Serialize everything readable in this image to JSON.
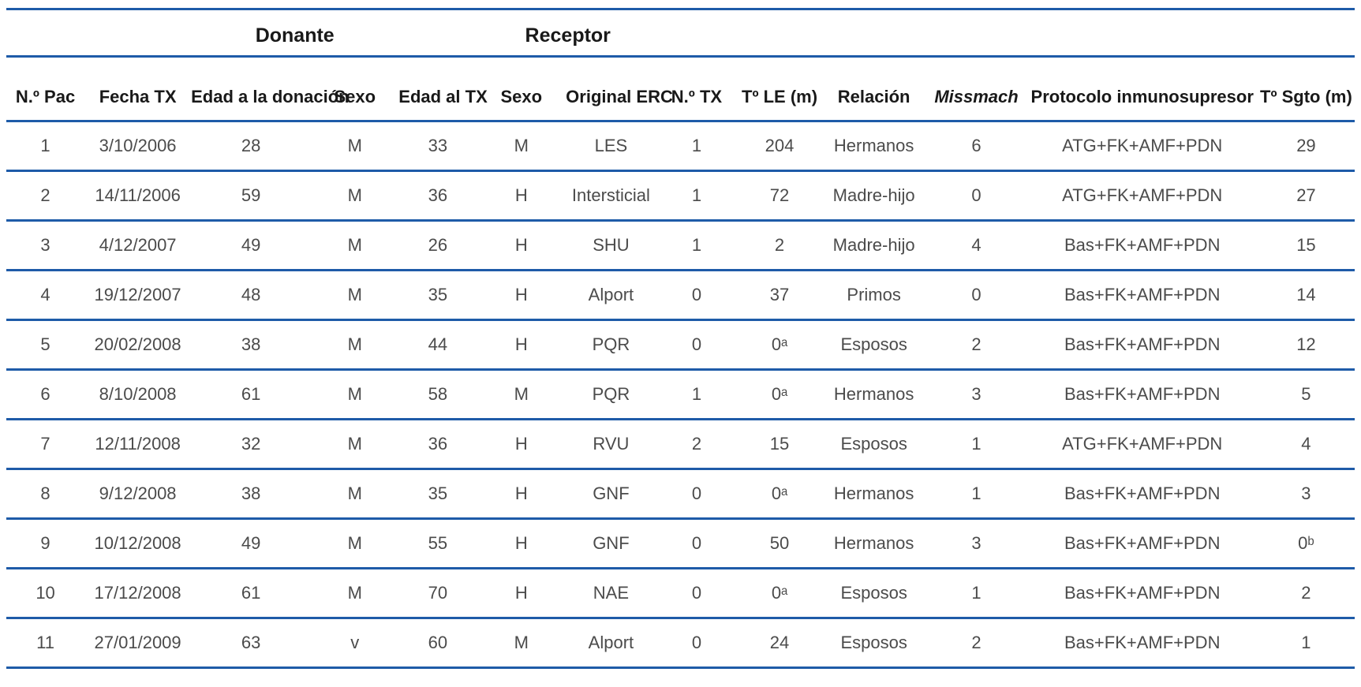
{
  "groups": {
    "donante": "Donante",
    "receptor": "Receptor"
  },
  "columns": [
    {
      "key": "pac",
      "label": "N.º Pac"
    },
    {
      "key": "fecha-tx",
      "label": "Fecha TX"
    },
    {
      "key": "edad-donacion",
      "label": "Edad a la donación"
    },
    {
      "key": "sexo-donante",
      "label": "Sexo"
    },
    {
      "key": "edad-tx",
      "label": "Edad al TX"
    },
    {
      "key": "sexo-receptor",
      "label": "Sexo"
    },
    {
      "key": "original-erc",
      "label": "Original ERC"
    },
    {
      "key": "num-tx",
      "label": "N.º TX"
    },
    {
      "key": "t-le",
      "label": "Tº LE (m)"
    },
    {
      "key": "relacion",
      "label": "Relación"
    },
    {
      "key": "missmach",
      "label": "Missmach",
      "italic": true
    },
    {
      "key": "protocolo",
      "label": "Protocolo inmunosupresor"
    },
    {
      "key": "t-sgto",
      "label": "Tº Sgto (m)"
    }
  ],
  "rows": [
    {
      "cells": [
        "1",
        "3/10/2006",
        "28",
        "M",
        "33",
        "M",
        "LES",
        "1",
        "204",
        "Hermanos",
        "6",
        "ATG+FK+AMF+PDN",
        "29"
      ]
    },
    {
      "cells": [
        "2",
        "14/11/2006",
        "59",
        "M",
        "36",
        "H",
        "Intersticial",
        "1",
        "72",
        "Madre-hijo",
        "0",
        "ATG+FK+AMF+PDN",
        "27"
      ]
    },
    {
      "cells": [
        "3",
        "4/12/2007",
        "49",
        "M",
        "26",
        "H",
        "SHU",
        "1",
        "2",
        "Madre-hijo",
        "4",
        "Bas+FK+AMF+PDN",
        "15"
      ]
    },
    {
      "cells": [
        "4",
        "19/12/2007",
        "48",
        "M",
        "35",
        "H",
        "Alport",
        "0",
        "37",
        "Primos",
        "0",
        "Bas+FK+AMF+PDN",
        "14"
      ]
    },
    {
      "cells": [
        "5",
        "20/02/2008",
        "38",
        "M",
        "44",
        "H",
        "PQR",
        "0",
        "0ᵃ",
        "Esposos",
        "2",
        "Bas+FK+AMF+PDN",
        "12"
      ]
    },
    {
      "cells": [
        "6",
        "8/10/2008",
        "61",
        "M",
        "58",
        "M",
        "PQR",
        "1",
        "0ᵃ",
        "Hermanos",
        "3",
        "Bas+FK+AMF+PDN",
        "5"
      ]
    },
    {
      "cells": [
        "7",
        "12/11/2008",
        "32",
        "M",
        "36",
        "H",
        "RVU",
        "2",
        "15",
        "Esposos",
        "1",
        "ATG+FK+AMF+PDN",
        "4"
      ]
    },
    {
      "cells": [
        "8",
        "9/12/2008",
        "38",
        "M",
        "35",
        "H",
        "GNF",
        "0",
        "0ᵃ",
        "Hermanos",
        "1",
        "Bas+FK+AMF+PDN",
        "3"
      ]
    },
    {
      "cells": [
        "9",
        "10/12/2008",
        "49",
        "M",
        "55",
        "H",
        "GNF",
        "0",
        "50",
        "Hermanos",
        "3",
        "Bas+FK+AMF+PDN",
        "0ᵇ"
      ]
    },
    {
      "cells": [
        "10",
        "17/12/2008",
        "61",
        "M",
        "70",
        "H",
        "NAE",
        "0",
        "0ᵃ",
        "Esposos",
        "1",
        "Bas+FK+AMF+PDN",
        "2"
      ]
    },
    {
      "cells": [
        "11",
        "27/01/2009",
        "63",
        "v",
        "60",
        "M",
        "Alport",
        "0",
        "24",
        "Esposos",
        "2",
        "Bas+FK+AMF+PDN",
        "1"
      ]
    }
  ],
  "colors": {
    "rule_blue": "#1e5ba8"
  }
}
